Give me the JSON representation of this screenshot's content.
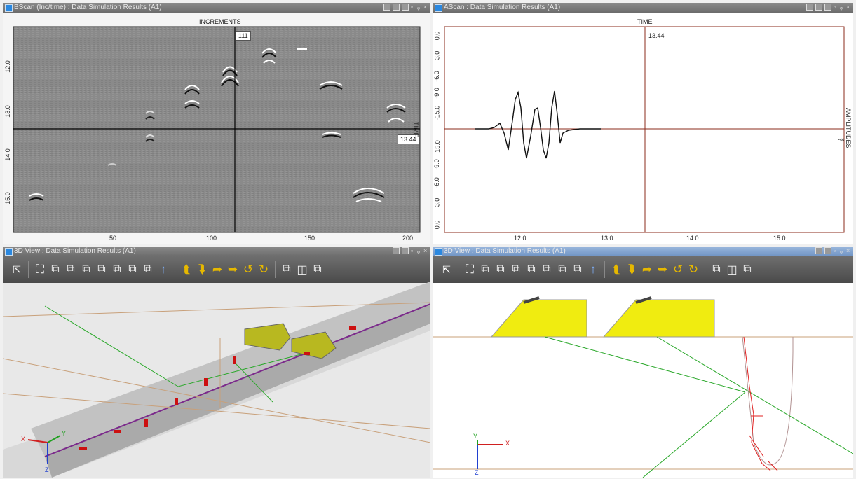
{
  "panels": {
    "bscan": {
      "title": "BScan (Inc/time) : Data Simulation Results (A1)",
      "top_label": "INCREMENTS",
      "side_label": "TIME",
      "cursor_x_value": "111",
      "cursor_y_value": "13.44",
      "y_ticks": [
        "12.0",
        "13.0",
        "14.0",
        "15.0"
      ],
      "x_ticks": [
        "50",
        "100",
        "150",
        "200"
      ]
    },
    "ascan": {
      "title": "AScan : Data Simulation Results (A1)",
      "top_label": "TIME",
      "side_label": "AMPLITUDES",
      "cursor_value": "13.44",
      "y_ticks": [
        "0.0",
        "3.0",
        "-6.0",
        "-9.0",
        "-15.0",
        "15.0",
        "-9.0",
        "-6.0",
        "3.0",
        "0.0"
      ],
      "x_ticks": [
        "12.0",
        "13.0",
        "14.0",
        "15.0"
      ],
      "side_value": "-∞"
    },
    "view3d_left": {
      "title": "3D View : Data Simulation Results (A1)"
    },
    "view3d_right": {
      "title": "3D View : Data Simulation Results (A1)"
    }
  },
  "toolbar_icons": [
    "select-arrow-icon",
    "fit-view-icon",
    "cube-front-icon",
    "cube-back-icon",
    "cube-left-icon",
    "cube-right-icon",
    "cube-top-icon",
    "cube-bottom-icon",
    "cube-iso-icon",
    "up-arrow-icon",
    "rotate-left-icon",
    "rotate-right-icon",
    "rotate-up-icon",
    "rotate-down-icon",
    "undo-rotate-icon",
    "redo-rotate-icon",
    "cube-solid-icon",
    "cube-wire-icon",
    "cube-shaded-icon"
  ],
  "axes": {
    "x": "X",
    "y": "Y",
    "z": "Z"
  },
  "colors": {
    "probe": "#e3e30a",
    "defect": "#cc1010",
    "beam": "#2aa82a",
    "weld": "#7b2a8b",
    "contour": "#c8a07a"
  }
}
